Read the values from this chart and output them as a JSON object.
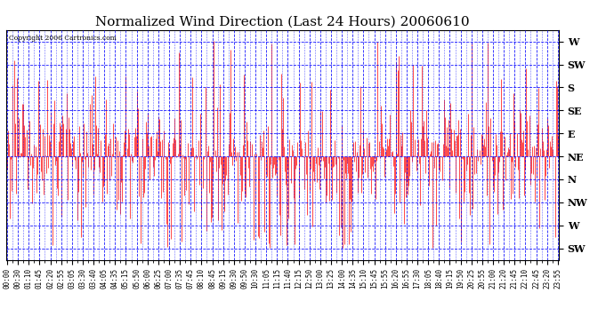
{
  "title": "Normalized Wind Direction (Last 24 Hours) 20060610",
  "copyright": "Copyright 2006 Cartronics.com",
  "background_color": "white",
  "plot_bg_color": "white",
  "line_color": "red",
  "grid_major_color": "blue",
  "grid_minor_color": "blue",
  "ytick_labels": [
    "SW",
    "W",
    "NW",
    "N",
    "NE",
    "E",
    "SE",
    "S",
    "SW",
    "W"
  ],
  "ytick_values": [
    0,
    1,
    2,
    3,
    4,
    5,
    6,
    7,
    8,
    9
  ],
  "ylim": [
    -0.5,
    9.5
  ],
  "num_points": 576,
  "seed": 123,
  "baseline": 4.0,
  "xtick_labels": [
    "00:00",
    "00:30",
    "01:10",
    "01:45",
    "02:20",
    "02:55",
    "03:05",
    "03:30",
    "03:40",
    "04:05",
    "04:35",
    "05:15",
    "05:50",
    "06:00",
    "06:25",
    "07:00",
    "07:35",
    "07:45",
    "08:10",
    "08:45",
    "09:15",
    "09:30",
    "09:50",
    "10:30",
    "11:05",
    "11:15",
    "11:40",
    "12:15",
    "12:50",
    "13:00",
    "13:25",
    "14:00",
    "14:35",
    "15:10",
    "15:45",
    "15:55",
    "16:20",
    "16:55",
    "17:30",
    "18:05",
    "18:40",
    "19:15",
    "19:50",
    "20:25",
    "20:55",
    "21:00",
    "21:20",
    "21:45",
    "22:10",
    "22:45",
    "23:20",
    "23:55"
  ],
  "title_fontsize": 11,
  "tick_fontsize": 5.5,
  "ylabel_fontsize": 8,
  "figwidth": 6.9,
  "figheight": 3.75,
  "dpi": 100
}
